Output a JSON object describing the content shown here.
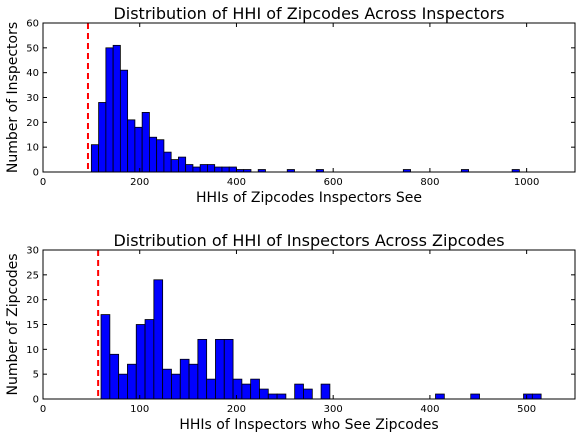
{
  "chart_data": [
    {
      "type": "bar",
      "title": "Distribution of HHI of Zipcodes Across Inspectors",
      "xlabel": "HHIs of Zipcodes Inspectors See",
      "ylabel": "Number of Inspectors",
      "xlim": [
        0,
        1100
      ],
      "ylim": [
        0,
        60
      ],
      "xticks": [
        0,
        200,
        400,
        600,
        800,
        1000
      ],
      "yticks": [
        0,
        10,
        20,
        30,
        40,
        50,
        60
      ],
      "bin_width": 15,
      "bin_starts": [
        100,
        115,
        130,
        145,
        160,
        175,
        190,
        205,
        220,
        235,
        250,
        265,
        280,
        295,
        310,
        325,
        340,
        355,
        370,
        385,
        400,
        415,
        430,
        445,
        460,
        475,
        490,
        505,
        520,
        535,
        550,
        565,
        580,
        595,
        610,
        625,
        640,
        655,
        670,
        685,
        700,
        715,
        730,
        745,
        760,
        775,
        790,
        805,
        820,
        835,
        850,
        865,
        880,
        895,
        910,
        925,
        940,
        955,
        970,
        985
      ],
      "values": [
        11,
        28,
        50,
        51,
        41,
        21,
        18,
        24,
        14,
        13,
        8,
        5,
        6,
        3,
        2,
        3,
        3,
        2,
        2,
        2,
        1,
        1,
        0,
        1,
        0,
        0,
        0,
        1,
        0,
        0,
        0,
        1,
        0,
        0,
        0,
        0,
        0,
        0,
        0,
        0,
        0,
        0,
        0,
        1,
        0,
        0,
        0,
        0,
        0,
        0,
        0,
        1,
        0,
        0,
        0,
        0,
        0,
        0,
        1,
        0
      ],
      "color": "#0000ff",
      "vline": {
        "x": 93,
        "color": "#ff0000",
        "style": "dashed"
      }
    },
    {
      "type": "bar",
      "title": "Distribution of HHI of Inspectors Across Zipcodes",
      "xlabel": "HHIs of Inspectors who See Zipcodes",
      "ylabel": "Number of Zipcodes",
      "xlim": [
        0,
        550
      ],
      "ylim": [
        0,
        30
      ],
      "xticks": [
        0,
        100,
        200,
        300,
        400,
        500
      ],
      "yticks": [
        0,
        5,
        10,
        15,
        20,
        25,
        30
      ],
      "bin_width": 9.1,
      "bin_starts": [
        60.0,
        69.1,
        78.2,
        87.3,
        96.4,
        105.5,
        114.6,
        123.7,
        132.8,
        141.9,
        151.0,
        160.1,
        169.2,
        178.3,
        187.4,
        196.5,
        205.6,
        214.7,
        223.8,
        232.9,
        242.0,
        251.1,
        260.2,
        269.3,
        278.4,
        287.5,
        296.6,
        305.7,
        314.8,
        323.9,
        333.0,
        342.1,
        351.2,
        360.3,
        369.4,
        378.5,
        387.6,
        396.7,
        405.8,
        414.9,
        424.0,
        433.1,
        442.2,
        451.3,
        460.4,
        469.5,
        478.6,
        487.7,
        496.8,
        505.9
      ],
      "values": [
        17,
        9,
        5,
        7,
        15,
        16,
        24,
        6,
        5,
        8,
        7,
        12,
        4,
        12,
        12,
        4,
        3,
        4,
        2,
        1,
        1,
        0,
        3,
        2,
        0,
        3,
        0,
        0,
        0,
        0,
        0,
        0,
        0,
        0,
        0,
        0,
        0,
        0,
        1,
        0,
        0,
        0,
        1,
        0,
        0,
        0,
        0,
        0,
        1,
        1
      ],
      "color": "#0000ff",
      "vline": {
        "x": 57,
        "color": "#ff0000",
        "style": "dashed"
      }
    }
  ]
}
